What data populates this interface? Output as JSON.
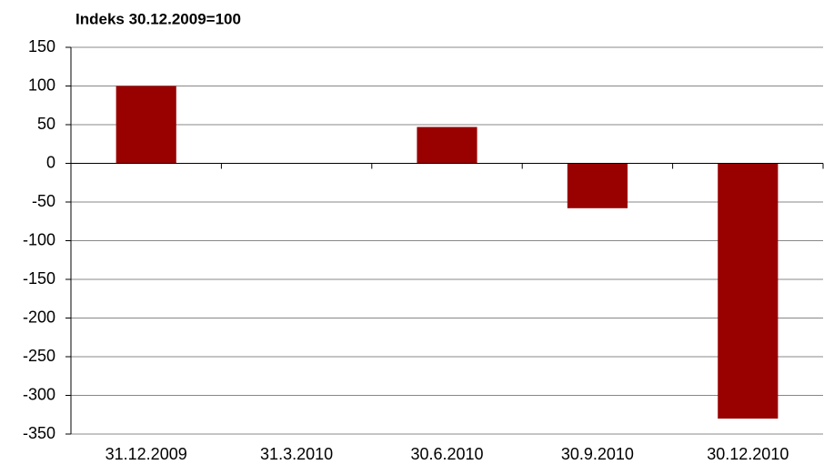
{
  "chart_data": {
    "type": "bar",
    "title": "Indeks 30.12.2009=100",
    "categories": [
      "31.12.2009",
      "31.3.2010",
      "30.6.2010",
      "30.9.2010",
      "30.12.2010"
    ],
    "values": [
      100,
      0,
      47,
      -58,
      -330
    ],
    "color": "#990000",
    "ylim": [
      -350,
      150
    ],
    "yticks": [
      -350,
      -300,
      -250,
      -200,
      -150,
      -100,
      -50,
      0,
      50,
      100,
      150
    ],
    "grid": true
  }
}
